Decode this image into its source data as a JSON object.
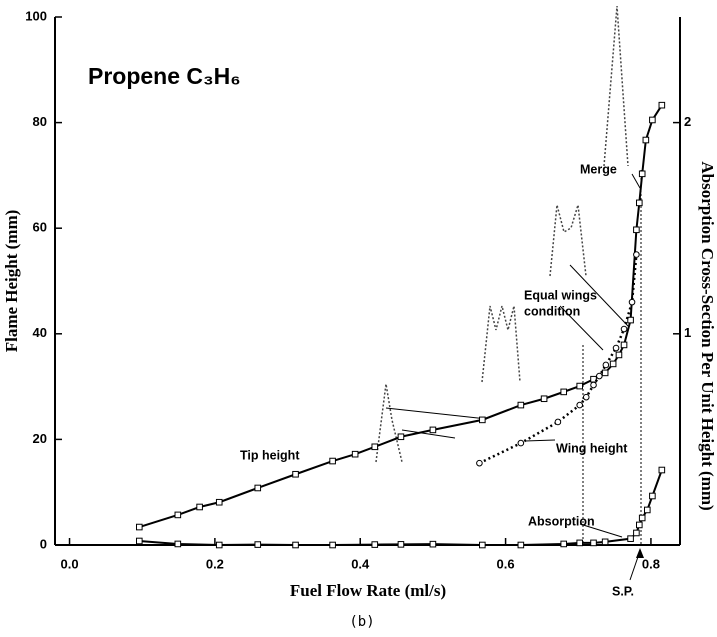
{
  "chart_data": {
    "type": "line",
    "title": "Propene C₃H₆",
    "x_label": "Fuel Flow Rate (ml/s)",
    "y_label": "Flame Height (mm)",
    "y2_label": "Absorption Cross-Section Per Unit Height (mm)",
    "caption": "(b)",
    "xlim": [
      -0.02,
      0.84
    ],
    "xticks": [
      {
        "value": 0,
        "label": "0.0"
      },
      0.2,
      0.4,
      0.6,
      0.8
    ],
    "ylim": [
      0,
      100
    ],
    "yticks": [
      0,
      20,
      40,
      60,
      80,
      100
    ],
    "y2lim": [
      0,
      2.5
    ],
    "y2ticks": [
      1,
      2
    ],
    "annotations": [
      "Merge",
      "Equal wings",
      "condition",
      "Tip height",
      "Wing height",
      "Absorption",
      "S.P."
    ],
    "series": [
      {
        "name": "Tip height",
        "color": "#000000",
        "marker": "square",
        "dashed": false,
        "x": [
          0.096,
          0.149,
          0.179,
          0.206,
          0.259,
          0.311,
          0.362,
          0.393,
          0.42,
          0.456,
          0.5,
          0.568,
          0.621,
          0.653,
          0.68,
          0.702,
          0.721,
          0.737,
          0.748,
          0.756,
          0.763,
          0.772,
          0.78,
          0.784,
          0.788,
          0.793,
          0.802,
          0.815
        ],
        "values": [
          3.4,
          5.7,
          7.2,
          8.1,
          10.8,
          13.4,
          15.9,
          17.2,
          18.6,
          20.5,
          21.8,
          23.7,
          26.5,
          27.7,
          29,
          30.1,
          31.4,
          32.6,
          34.3,
          36,
          37.9,
          42.6,
          59.7,
          64.8,
          70.3,
          76.7,
          80.5,
          83.3
        ]
      },
      {
        "name": "Wing height",
        "color": "#000000",
        "marker": "circle",
        "dashed": true,
        "x": [
          0.564,
          0.621,
          0.672,
          0.702,
          0.711,
          0.721,
          0.729,
          0.738,
          0.752,
          0.763,
          0.774,
          0.78
        ],
        "values": [
          15.5,
          19.3,
          23.3,
          26.5,
          28,
          30.3,
          32,
          34.1,
          37.3,
          40.9,
          46,
          55
        ]
      },
      {
        "name": "Absorption",
        "color": "#000000",
        "marker": "square",
        "dashed": false,
        "axis": "y2",
        "x": [
          0.096,
          0.149,
          0.206,
          0.259,
          0.311,
          0.362,
          0.42,
          0.456,
          0.5,
          0.568,
          0.621,
          0.68,
          0.702,
          0.721,
          0.737,
          0.772,
          0.78,
          0.784,
          0.788,
          0.795,
          0.802,
          0.815
        ],
        "values": [
          0.019,
          0.005,
          0,
          0.002,
          0,
          0,
          0.002,
          0.003,
          0.004,
          0,
          0,
          0.005,
          0.01,
          0.01,
          0.015,
          0.03,
          0.057,
          0.095,
          0.128,
          0.166,
          0.232,
          0.355
        ]
      }
    ]
  }
}
